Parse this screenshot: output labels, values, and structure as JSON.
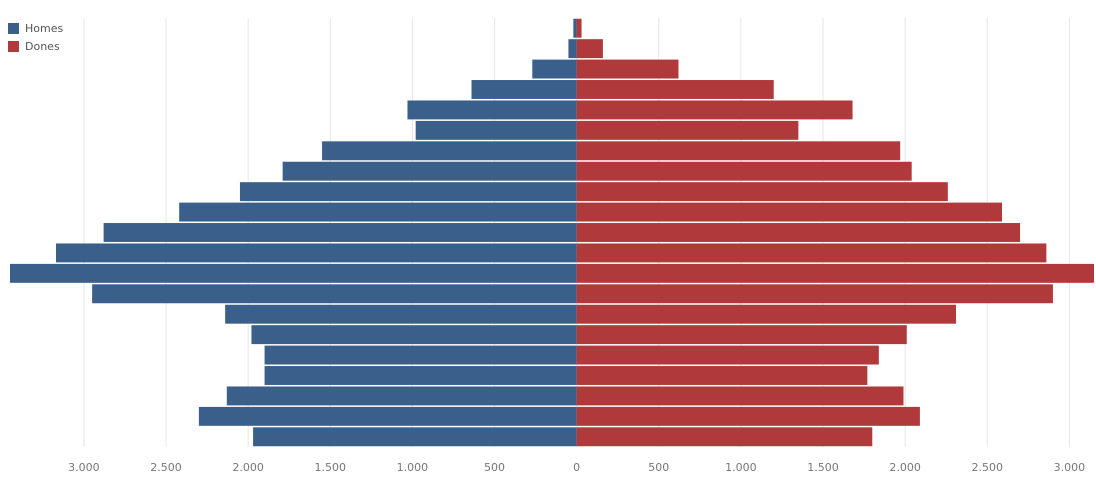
{
  "chart_data": {
    "type": "bar",
    "orientation": "horizontal",
    "layout": "population-pyramid",
    "categories": [
      "",
      "",
      "",
      "",
      "",
      "",
      "",
      "",
      "",
      "",
      "",
      "",
      "",
      "",
      "",
      "",
      "",
      "",
      "",
      "",
      ""
    ],
    "series": [
      {
        "name": "Homes",
        "color": "#3b5f8b",
        "side": "left",
        "values": [
          20,
          50,
          270,
          640,
          1030,
          980,
          1550,
          1790,
          2050,
          2420,
          2880,
          3170,
          3450,
          2950,
          2140,
          1980,
          1900,
          1900,
          2130,
          2300,
          1970
        ]
      },
      {
        "name": "Dones",
        "color": "#b03a3b",
        "side": "right",
        "values": [
          30,
          160,
          620,
          1200,
          1680,
          1350,
          1970,
          2040,
          2260,
          2590,
          2700,
          2860,
          3150,
          2900,
          2310,
          2010,
          1840,
          1770,
          1990,
          2090,
          1800
        ]
      }
    ],
    "xlim": [
      -3450,
      3150
    ],
    "x_ticks": [
      -3000,
      -2500,
      -2000,
      -1500,
      -1000,
      -500,
      0,
      500,
      1000,
      1500,
      2000,
      2500,
      3000
    ],
    "x_tick_labels": [
      "3.000",
      "2.500",
      "2.000",
      "1.500",
      "1.000",
      "500",
      "0",
      "500",
      "1.000",
      "1.500",
      "2.000",
      "2.500",
      "3.000"
    ],
    "grid": "vertical",
    "legend": "top-left",
    "title": "",
    "xlabel": "",
    "ylabel": ""
  }
}
